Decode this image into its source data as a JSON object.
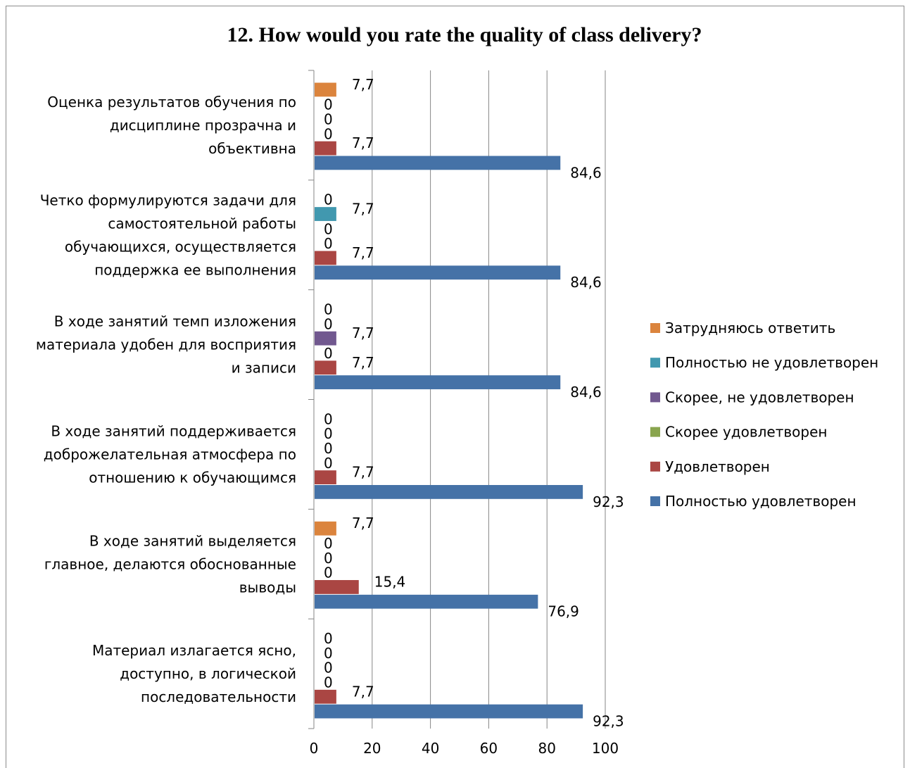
{
  "chart_data": {
    "type": "bar",
    "orientation": "horizontal",
    "title": "12. How would you rate the quality of class delivery?",
    "xlabel": "",
    "ylabel": "",
    "xlim": [
      0,
      100
    ],
    "x_ticks": [
      "0",
      "20",
      "40",
      "60",
      "80",
      "100"
    ],
    "grid": "vertical major gridlines on",
    "legend_position": "right",
    "categories": [
      [
        "Оценка результатов обучения по",
        "дисциплине прозрачна и",
        "объективна"
      ],
      [
        "Четко формулируются задачи для",
        "самостоятельной работы",
        "обучающихся, осуществляется",
        "поддержка ее выполнения"
      ],
      [
        "В ходе занятий темп изложения",
        "материала удобен для восприятия",
        "и записи"
      ],
      [
        "В ходе занятий поддерживается",
        "доброжелательная атмосфера по",
        "отношению к обучающимся"
      ],
      [
        "В ходе занятий выделяется",
        "главное, делаются обоснованные",
        "выводы"
      ],
      [
        "Материал излагается ясно,",
        "доступно, в логической",
        "последовательности"
      ]
    ],
    "series": [
      {
        "name": "Полностью удовлетворен",
        "color": "#4572a7",
        "values": [
          84.6,
          84.6,
          84.6,
          92.3,
          76.9,
          92.3
        ],
        "labels": [
          "84,6",
          "84,6",
          "84,6",
          "92,3",
          "76,9",
          "92,3"
        ]
      },
      {
        "name": "Удовлетворен",
        "color": "#aa4643",
        "values": [
          7.7,
          7.7,
          7.7,
          7.7,
          15.4,
          7.7
        ],
        "labels": [
          "7,7",
          "7,7",
          "7,7",
          "7,7",
          "15,4",
          "7,7"
        ]
      },
      {
        "name": "Скорее удовлетворен",
        "color": "#89a54e",
        "values": [
          0,
          0,
          0,
          0,
          0,
          0
        ],
        "labels": [
          "0",
          "0",
          "0",
          "0",
          "0",
          "0"
        ]
      },
      {
        "name": "Скорее, не удовлетворен",
        "color": "#71588f",
        "values": [
          0,
          0,
          7.7,
          0,
          0,
          0
        ],
        "labels": [
          "0",
          "0",
          "7,7",
          "0",
          "0",
          "0"
        ]
      },
      {
        "name": "Полностью не удовлетворен",
        "color": "#4198af",
        "values": [
          0,
          7.7,
          0,
          0,
          0,
          0
        ],
        "labels": [
          "0",
          "7,7",
          "0",
          "0",
          "0",
          "0"
        ]
      },
      {
        "name": "Затрудняюсь ответить",
        "color": "#db843d",
        "values": [
          7.7,
          0,
          0,
          0,
          7.7,
          0
        ],
        "labels": [
          "7,7",
          "0",
          "0",
          "0",
          "7,7",
          "0"
        ]
      }
    ]
  }
}
